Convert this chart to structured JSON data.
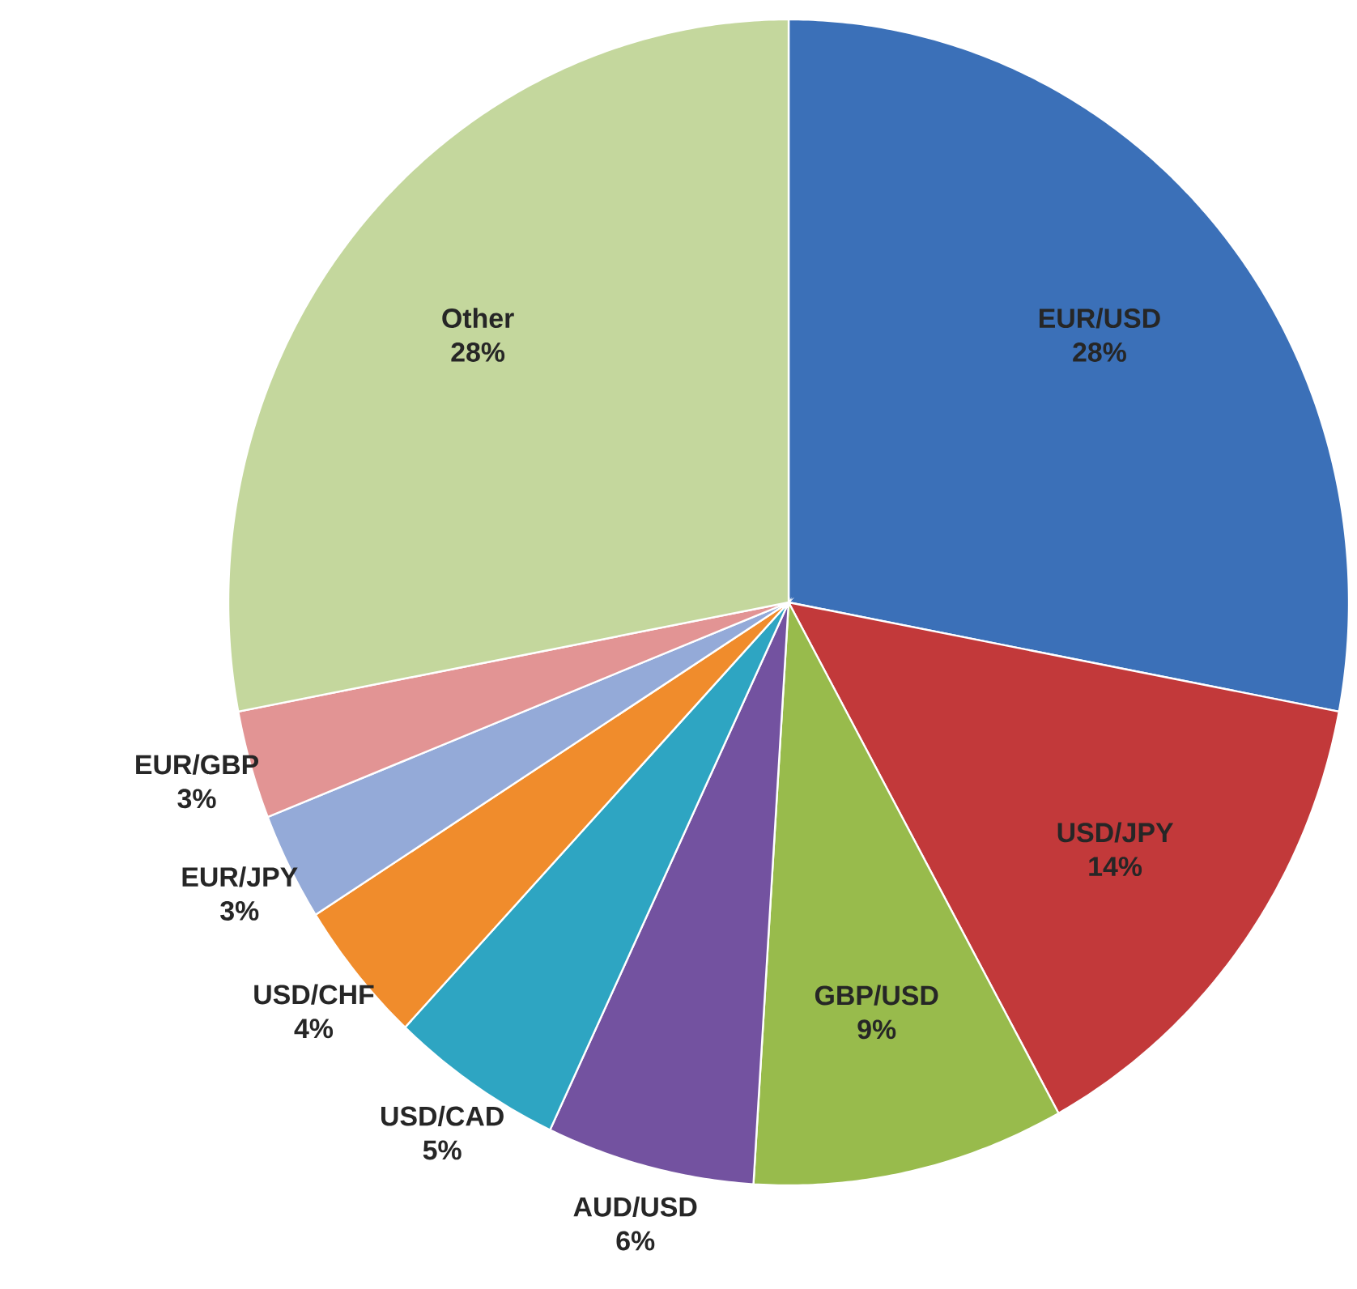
{
  "chart_data": {
    "type": "pie",
    "categories": [
      "EUR/USD",
      "USD/JPY",
      "GBP/USD",
      "AUD/USD",
      "USD/CAD",
      "USD/CHF",
      "EUR/JPY",
      "EUR/GBP",
      "Other"
    ],
    "values": [
      28,
      14,
      9,
      6,
      5,
      4,
      3,
      3,
      28
    ],
    "value_labels": [
      "28%",
      "14%",
      "9%",
      "6%",
      "5%",
      "4%",
      "3%",
      "3%",
      "28%"
    ],
    "colors": [
      "#3b70b8",
      "#c2393a",
      "#98bb4c",
      "#7352a0",
      "#2ea5c2",
      "#f08c2c",
      "#94aad8",
      "#e29494",
      "#c4d79d"
    ]
  }
}
